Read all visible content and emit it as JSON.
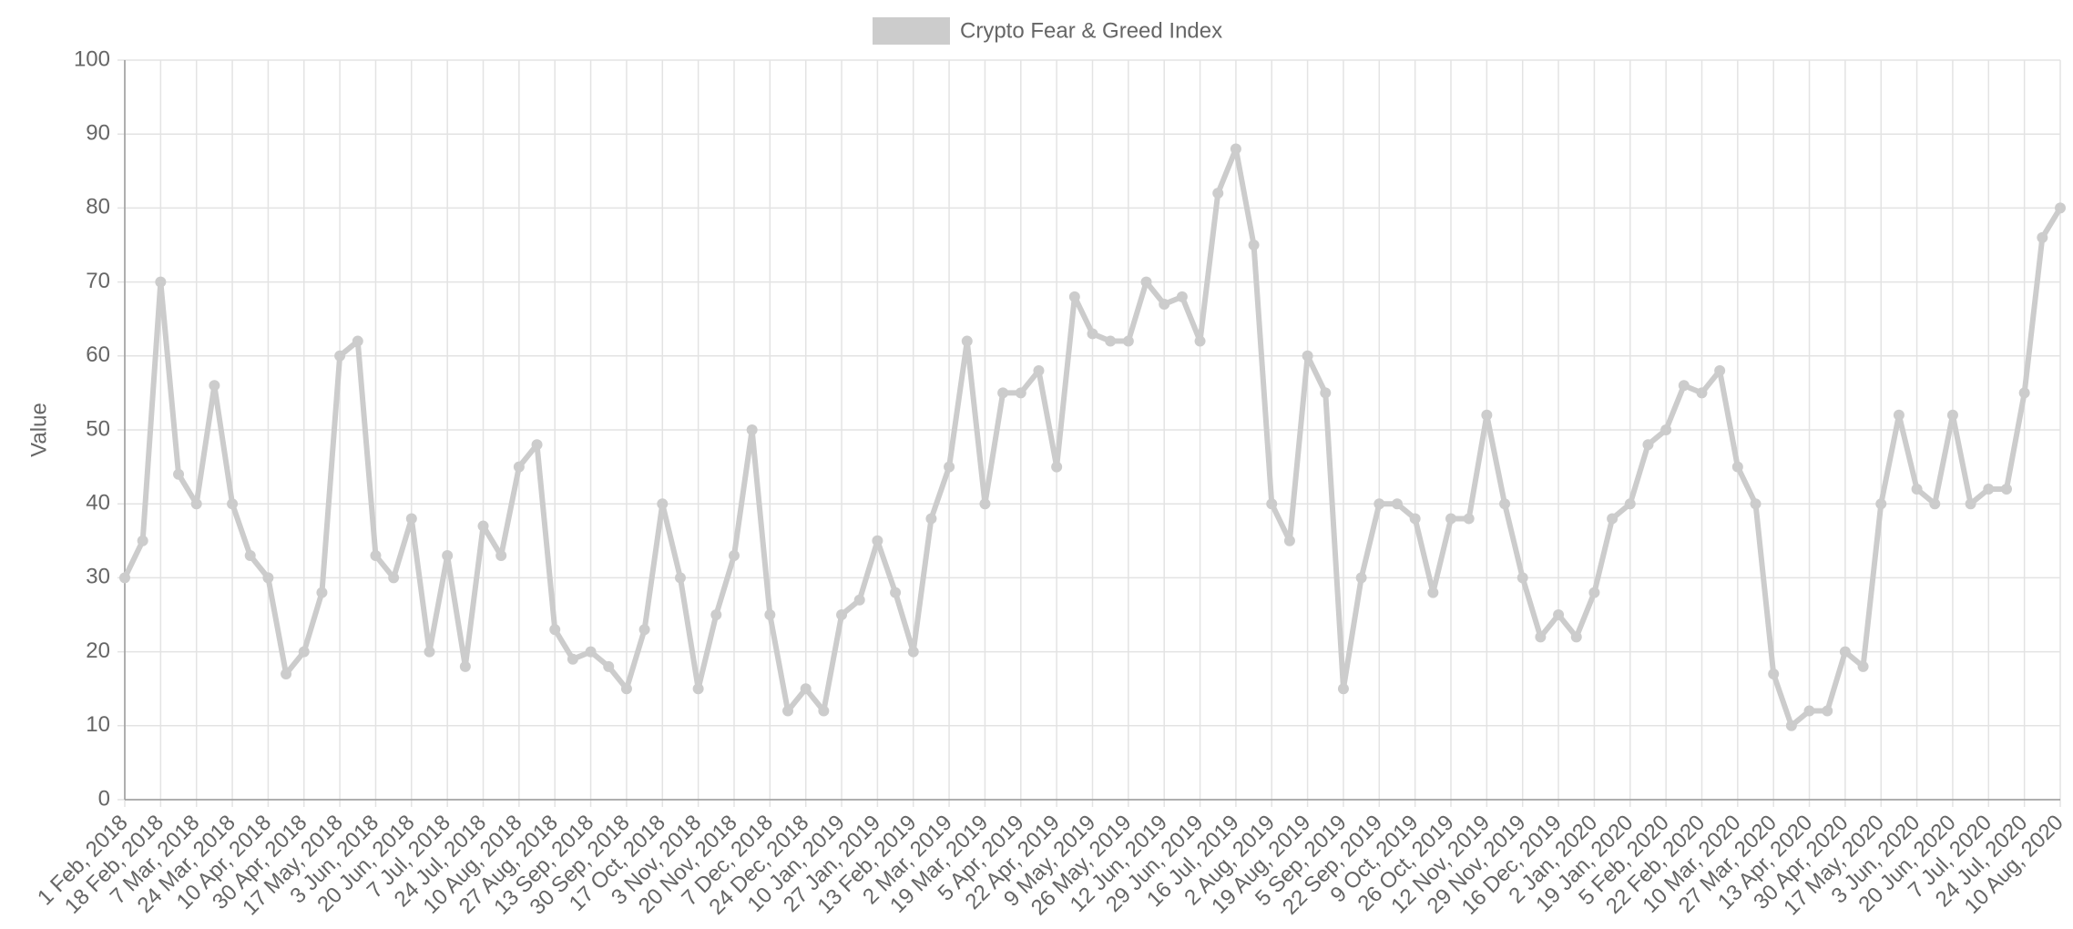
{
  "chart_data": {
    "type": "line",
    "y_label": "Value",
    "categories": [
      "1 Feb, 2018",
      null,
      "18 Feb, 2018",
      null,
      "7 Mar, 2018",
      null,
      "24 Mar, 2018",
      null,
      "10 Apr, 2018",
      null,
      "30 Apr, 2018",
      null,
      "17 May, 2018",
      null,
      "3 Jun, 2018",
      null,
      "20 Jun, 2018",
      null,
      "7 Jul, 2018",
      null,
      "24 Jul, 2018",
      null,
      "10 Aug, 2018",
      null,
      "27 Aug, 2018",
      null,
      "13 Sep, 2018",
      null,
      "30 Sep, 2018",
      null,
      "17 Oct, 2018",
      null,
      "3 Nov, 2018",
      null,
      "20 Nov, 2018",
      null,
      "7 Dec, 2018",
      null,
      "24 Dec, 2018",
      null,
      "10 Jan, 2019",
      null,
      "27 Jan, 2019",
      null,
      "13 Feb, 2019",
      null,
      "2 Mar, 2019",
      null,
      "19 Mar, 2019",
      null,
      "5 Apr, 2019",
      null,
      "22 Apr, 2019",
      null,
      "9 May, 2019",
      null,
      "26 May, 2019",
      null,
      "12 Jun, 2019",
      null,
      "29 Jun, 2019",
      null,
      "16 Jul, 2019",
      null,
      "2 Aug, 2019",
      null,
      "19 Aug, 2019",
      null,
      "5 Sep, 2019",
      null,
      "22 Sep, 2019",
      null,
      "9 Oct, 2019",
      null,
      "26 Oct, 2019",
      null,
      "12 Nov, 2019",
      null,
      "29 Nov, 2019",
      null,
      "16 Dec, 2019",
      null,
      "2 Jan, 2020",
      null,
      "19 Jan, 2020",
      null,
      "5 Feb, 2020",
      null,
      "22 Feb, 2020",
      null,
      "10 Mar, 2020",
      null,
      "27 Mar, 2020",
      null,
      "13 Apr, 2020",
      null,
      "30 Apr, 2020",
      null,
      "17 May, 2020",
      null,
      "3 Jun, 2020",
      null,
      "20 Jun, 2020",
      null,
      "7 Jul, 2020",
      null,
      "24 Jul, 2020",
      null,
      "10 Aug, 2020"
    ],
    "series": [
      {
        "name": "Crypto Fear & Greed Index",
        "color": "#cccccc",
        "values": [
          30,
          35,
          70,
          44,
          40,
          56,
          40,
          33,
          30,
          17,
          20,
          28,
          60,
          62,
          33,
          30,
          38,
          20,
          33,
          18,
          37,
          33,
          45,
          48,
          23,
          19,
          20,
          18,
          15,
          23,
          40,
          30,
          15,
          25,
          33,
          50,
          25,
          12,
          15,
          12,
          25,
          27,
          35,
          28,
          20,
          38,
          45,
          62,
          40,
          55,
          55,
          58,
          45,
          68,
          63,
          62,
          62,
          70,
          67,
          68,
          62,
          82,
          88,
          75,
          40,
          35,
          60,
          55,
          15,
          30,
          40,
          40,
          38,
          28,
          38,
          38,
          52,
          40,
          30,
          22,
          25,
          22,
          28,
          38,
          40,
          48,
          50,
          56,
          55,
          58,
          45,
          40,
          17,
          10,
          12,
          12,
          20,
          18,
          40,
          52,
          42,
          40,
          52,
          40,
          42,
          42,
          55,
          76,
          80
        ]
      }
    ],
    "ylim": [
      0,
      100
    ],
    "yticks": [
      0,
      10,
      20,
      30,
      40,
      50,
      60,
      70,
      80,
      90,
      100
    ],
    "grid": true,
    "legend": "top"
  }
}
